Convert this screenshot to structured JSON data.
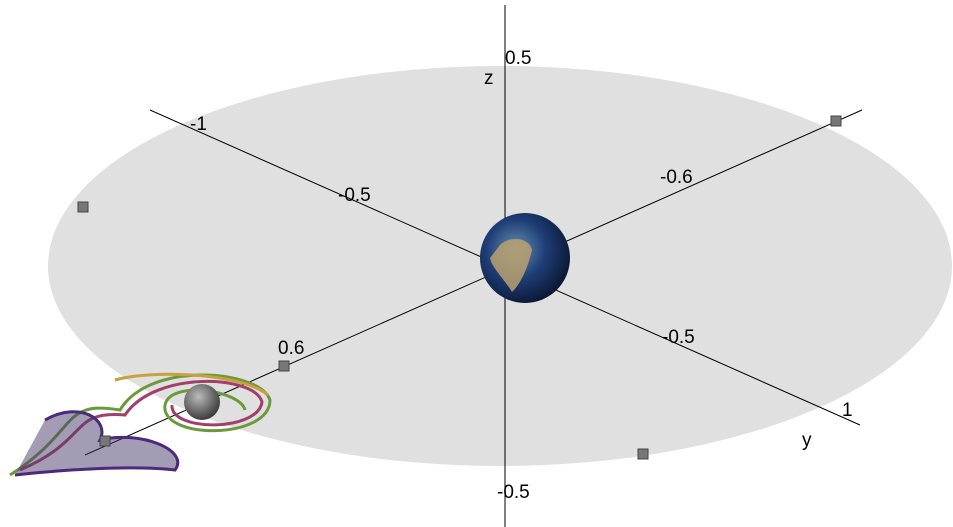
{
  "axes": {
    "z": {
      "name": "z",
      "labels": [
        "0.5",
        "-0.5"
      ]
    },
    "y": {
      "name": "y",
      "labels": [
        "-1",
        "-0.5",
        "-0.5",
        "1"
      ]
    },
    "x": {
      "labels": [
        "-0.6",
        "0.6"
      ]
    }
  }
}
